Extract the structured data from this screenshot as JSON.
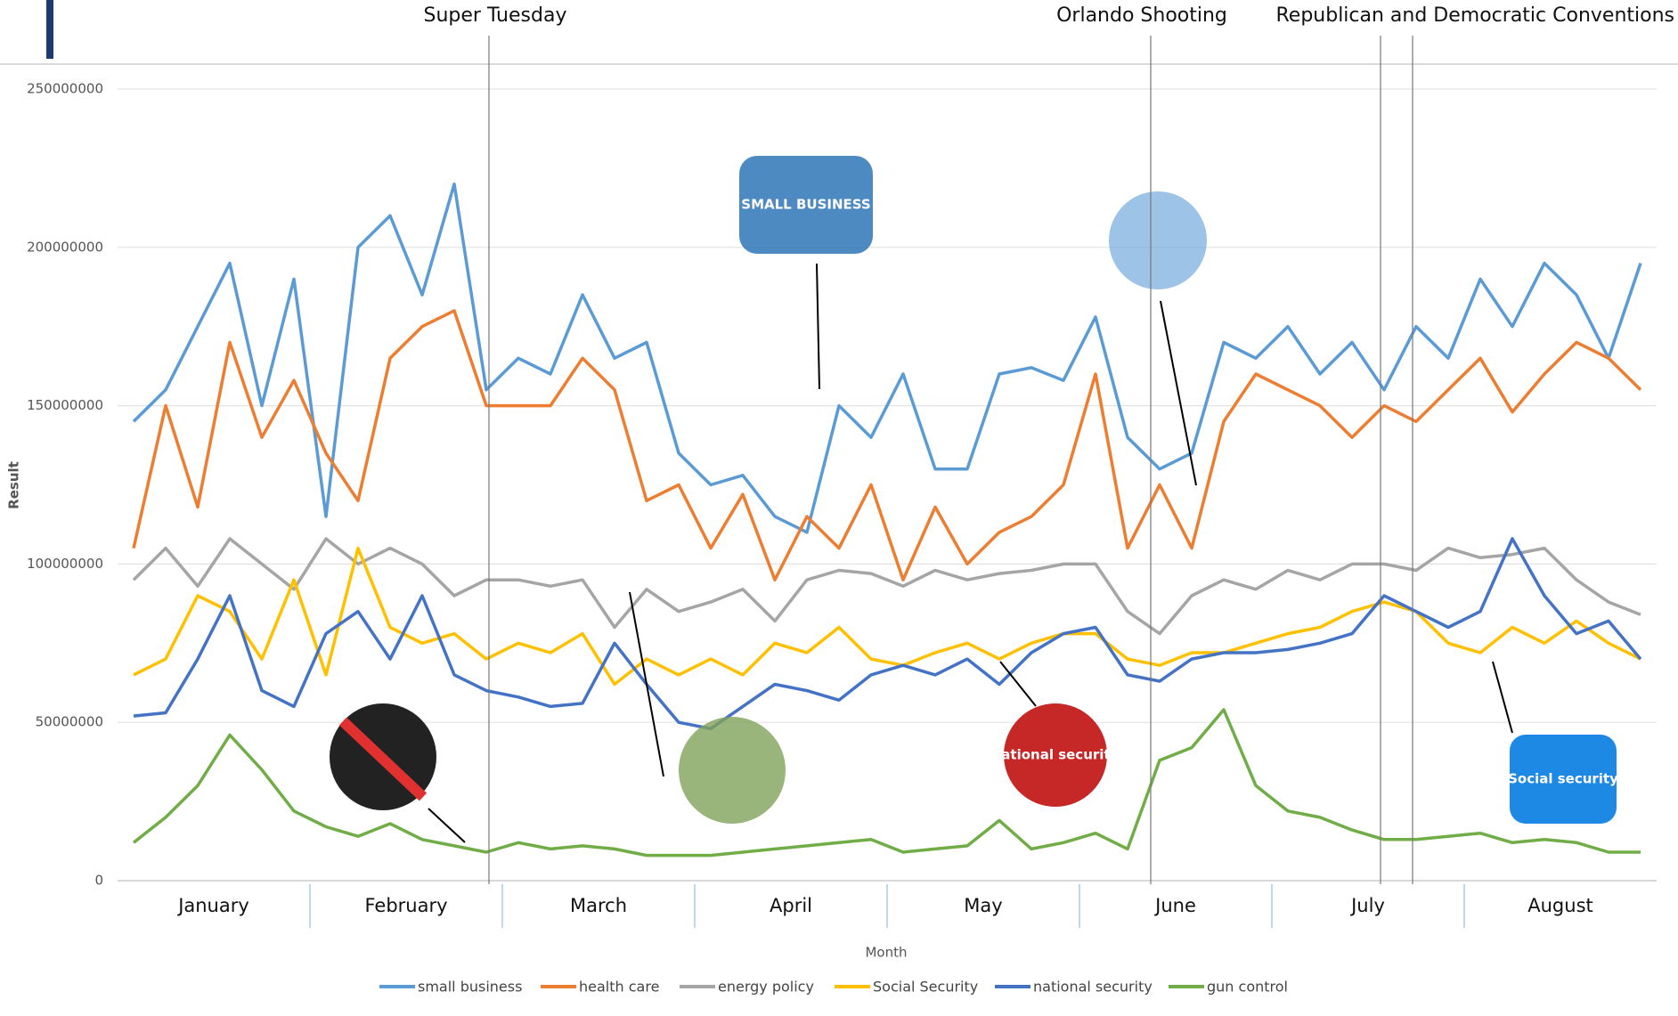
{
  "chart_data": {
    "type": "line",
    "y_axis_label": "Result",
    "x_axis_label": "Month",
    "months": [
      "January",
      "February",
      "March",
      "April",
      "May",
      "June",
      "July",
      "August"
    ],
    "annotations": [
      "Super Tuesday",
      "Orlando Shooting",
      "Republican and Democratic Conventions"
    ],
    "icons": [
      "SMALL BUSINESS",
      "national security",
      "Social security"
    ],
    "ylim": [
      0,
      250000000
    ],
    "yticks": [
      0,
      50000000,
      100000000,
      150000000,
      200000000,
      250000000
    ],
    "grid": true,
    "series": [
      {
        "name": "small business",
        "color": "#5b9bd5",
        "values": [
          145000000,
          155000000,
          175000000,
          195000000,
          150000000,
          190000000,
          115000000,
          200000000,
          210000000,
          185000000,
          220000000,
          155000000,
          165000000,
          160000000,
          185000000,
          165000000,
          170000000,
          135000000,
          125000000,
          128000000,
          115000000,
          110000000,
          150000000,
          140000000,
          160000000,
          130000000,
          130000000,
          160000000,
          162000000,
          158000000,
          178000000,
          140000000,
          130000000,
          135000000,
          170000000,
          165000000,
          175000000,
          160000000,
          170000000,
          155000000,
          175000000,
          165000000,
          190000000,
          175000000,
          195000000,
          185000000,
          165000000,
          195000000
        ]
      },
      {
        "name": "health care",
        "color": "#ed7d31",
        "values": [
          105000000,
          150000000,
          118000000,
          170000000,
          140000000,
          158000000,
          135000000,
          120000000,
          165000000,
          175000000,
          180000000,
          150000000,
          150000000,
          150000000,
          165000000,
          155000000,
          120000000,
          125000000,
          105000000,
          122000000,
          95000000,
          115000000,
          105000000,
          125000000,
          95000000,
          118000000,
          100000000,
          110000000,
          115000000,
          125000000,
          160000000,
          105000000,
          125000000,
          105000000,
          145000000,
          160000000,
          155000000,
          150000000,
          140000000,
          150000000,
          145000000,
          155000000,
          165000000,
          148000000,
          160000000,
          170000000,
          165000000,
          155000000
        ]
      },
      {
        "name": "energy policy",
        "color": "#a5a5a5",
        "values": [
          95000000,
          105000000,
          93000000,
          108000000,
          100000000,
          92000000,
          108000000,
          100000000,
          105000000,
          100000000,
          90000000,
          95000000,
          95000000,
          93000000,
          95000000,
          80000000,
          92000000,
          85000000,
          88000000,
          92000000,
          82000000,
          95000000,
          98000000,
          97000000,
          93000000,
          98000000,
          95000000,
          97000000,
          98000000,
          100000000,
          100000000,
          85000000,
          78000000,
          90000000,
          95000000,
          92000000,
          98000000,
          95000000,
          100000000,
          100000000,
          98000000,
          105000000,
          102000000,
          103000000,
          105000000,
          95000000,
          88000000,
          84000000
        ]
      },
      {
        "name": "Social Security",
        "color": "#ffc000",
        "values": [
          65000000,
          70000000,
          90000000,
          85000000,
          70000000,
          95000000,
          65000000,
          105000000,
          80000000,
          75000000,
          78000000,
          70000000,
          75000000,
          72000000,
          78000000,
          62000000,
          70000000,
          65000000,
          70000000,
          65000000,
          75000000,
          72000000,
          80000000,
          70000000,
          68000000,
          72000000,
          75000000,
          70000000,
          75000000,
          78000000,
          78000000,
          70000000,
          68000000,
          72000000,
          72000000,
          75000000,
          78000000,
          80000000,
          85000000,
          88000000,
          85000000,
          75000000,
          72000000,
          80000000,
          75000000,
          82000000,
          75000000,
          70000000
        ]
      },
      {
        "name": "national security",
        "color": "#4472c4",
        "values": [
          52000000,
          53000000,
          70000000,
          90000000,
          60000000,
          55000000,
          78000000,
          85000000,
          70000000,
          90000000,
          65000000,
          60000000,
          58000000,
          55000000,
          56000000,
          75000000,
          62000000,
          50000000,
          48000000,
          55000000,
          62000000,
          60000000,
          57000000,
          65000000,
          68000000,
          65000000,
          70000000,
          62000000,
          72000000,
          78000000,
          80000000,
          65000000,
          63000000,
          70000000,
          72000000,
          72000000,
          73000000,
          75000000,
          78000000,
          90000000,
          85000000,
          80000000,
          85000000,
          108000000,
          90000000,
          78000000,
          82000000,
          70000000
        ]
      },
      {
        "name": "gun control",
        "color": "#70ad47",
        "values": [
          12000000,
          20000000,
          30000000,
          46000000,
          35000000,
          22000000,
          17000000,
          14000000,
          18000000,
          13000000,
          11000000,
          9000000,
          12000000,
          10000000,
          11000000,
          10000000,
          8000000,
          8000000,
          8000000,
          9000000,
          10000000,
          11000000,
          12000000,
          13000000,
          9000000,
          10000000,
          11000000,
          19000000,
          10000000,
          12000000,
          15000000,
          10000000,
          38000000,
          42000000,
          54000000,
          30000000,
          22000000,
          20000000,
          16000000,
          13000000,
          13000000,
          14000000,
          15000000,
          12000000,
          13000000,
          12000000,
          9000000,
          9000000
        ]
      }
    ]
  }
}
